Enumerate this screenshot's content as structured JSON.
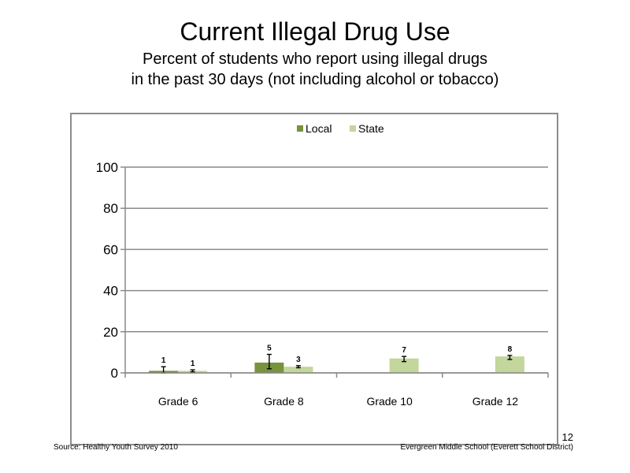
{
  "slide": {
    "title": "Current Illegal Drug Use",
    "subtitle_line1": "Percent of students who report using illegal drugs",
    "subtitle_line2": "in the past 30 days (not including  alcohol or tobacco)",
    "page_number": "12",
    "source": "Source: Healthy Youth Survey 2010",
    "school": "Evergreen Middle  School (Everett School District)"
  },
  "chart_data": {
    "type": "bar",
    "title": "",
    "xlabel": "",
    "ylabel": "",
    "categories": [
      "Grade 6",
      "Grade 8",
      "Grade 10",
      "Grade 12"
    ],
    "ylim": [
      0,
      100
    ],
    "yticks": [
      0,
      20,
      40,
      60,
      80,
      100
    ],
    "grid": true,
    "legend_position": "top",
    "series": [
      {
        "name": "Local",
        "color": "#77933c",
        "values": [
          1,
          5,
          null,
          null
        ],
        "labels": [
          "1",
          "5",
          "",
          ""
        ],
        "error_low": [
          0,
          2,
          null,
          null
        ],
        "error_high": [
          3,
          9,
          null,
          null
        ]
      },
      {
        "name": "State",
        "color": "#c3d69b",
        "values": [
          1,
          3,
          7,
          8
        ],
        "labels": [
          "1",
          "3",
          "7",
          "8"
        ],
        "error_low": [
          0.5,
          2.5,
          5.5,
          6.5
        ],
        "error_high": [
          1.5,
          3.5,
          8,
          8.5
        ]
      }
    ]
  }
}
